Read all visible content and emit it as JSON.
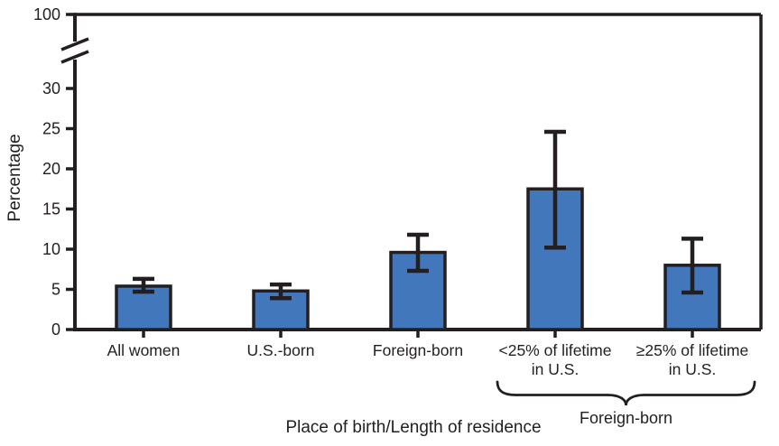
{
  "figure": {
    "background": "#ffffff"
  },
  "chart_data": {
    "type": "bar",
    "title": "",
    "xlabel": "Place of birth/Length of residence",
    "ylabel": "Percentage",
    "categories": [
      "All women",
      "U.S.-born",
      "Foreign-born",
      "<25% of lifetime in U.S.",
      "≥25% of lifetime in U.S."
    ],
    "category_label_lines": [
      [
        "All women"
      ],
      [
        "U.S.-born"
      ],
      [
        "Foreign-born"
      ],
      [
        "<25% of lifetime",
        "in U.S."
      ],
      [
        "≥25% of lifetime",
        "in U.S."
      ]
    ],
    "values": [
      5.4,
      4.8,
      9.6,
      17.5,
      8.0
    ],
    "error_bars": {
      "low": [
        4.7,
        3.9,
        7.3,
        10.2,
        4.6
      ],
      "high": [
        6.3,
        5.6,
        11.8,
        24.6,
        11.3
      ]
    },
    "yticks": [
      0,
      5,
      10,
      15,
      20,
      25,
      30
    ],
    "y_axis_break": {
      "enabled": true,
      "top_tick_label": "100"
    },
    "ylim": [
      0,
      33
    ],
    "grid": false,
    "legend": null,
    "group_annotation": {
      "label": "Foreign-born",
      "from_index": 3,
      "to_index": 4
    },
    "colors": {
      "bar_fill": "#4377BB",
      "ink": "#231F20"
    }
  }
}
